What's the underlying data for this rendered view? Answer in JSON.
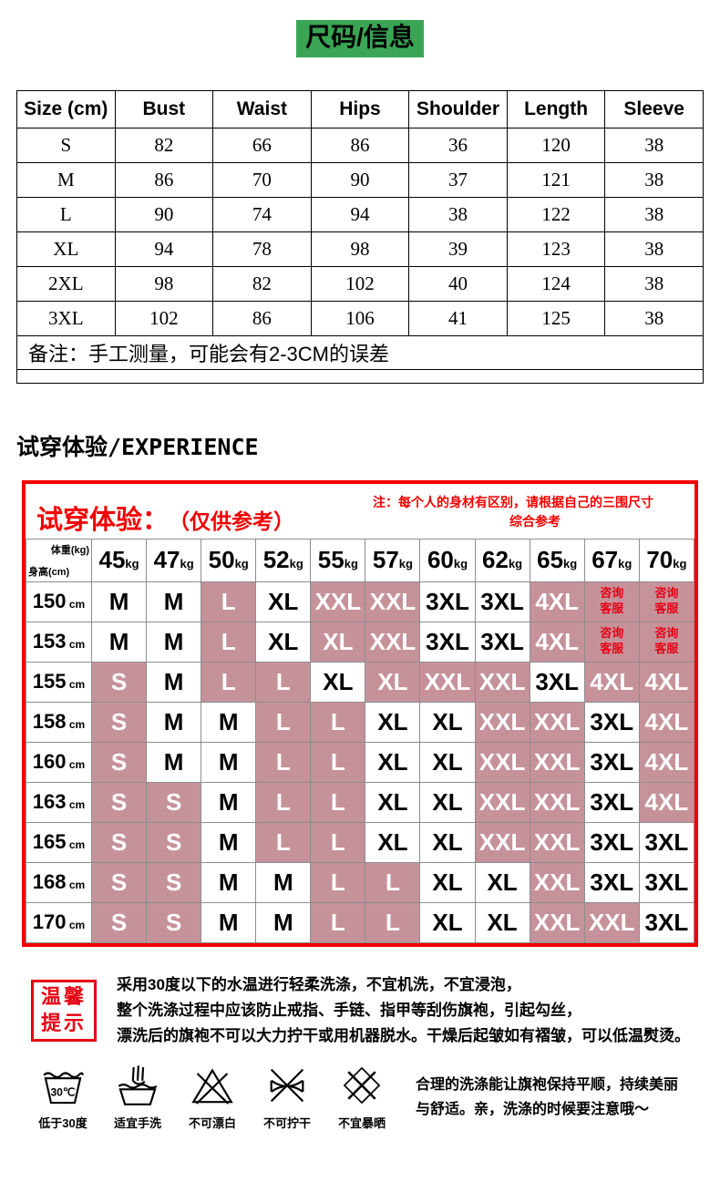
{
  "page": {
    "title": "尺码/信息"
  },
  "colors": {
    "title_highlight": "#3aa655",
    "fit_table_border": "#f20000",
    "highlight_cell": "#c6929a",
    "accent_red": "#e60012"
  },
  "size_table": {
    "headers": [
      "Size (cm)",
      "Bust",
      "Waist",
      "Hips",
      "Shoulder",
      "Length",
      "Sleeve"
    ],
    "rows": [
      [
        "S",
        "82",
        "66",
        "86",
        "36",
        "120",
        "38"
      ],
      [
        "M",
        "86",
        "70",
        "90",
        "37",
        "121",
        "38"
      ],
      [
        "L",
        "90",
        "74",
        "94",
        "38",
        "122",
        "38"
      ],
      [
        "XL",
        "94",
        "78",
        "98",
        "39",
        "123",
        "38"
      ],
      [
        "2XL",
        "98",
        "82",
        "102",
        "40",
        "124",
        "38"
      ],
      [
        "3XL",
        "102",
        "86",
        "106",
        "41",
        "125",
        "38"
      ]
    ],
    "note": "备注：手工测量，可能会有2-3CM的误差"
  },
  "experience": {
    "heading": "试穿体验/EXPERIENCE"
  },
  "fit_table": {
    "title": "试穿体验：",
    "subtitle": "（仅供参考）",
    "note": [
      "注：每个人的身材有区别，请根据自己的三围尺寸",
      "综合参考"
    ],
    "corner": {
      "top": "体重(kg)",
      "bottom": "身高(cm)"
    },
    "weight_headers": [
      {
        "value": "45",
        "unit": "kg"
      },
      {
        "value": "47",
        "unit": "kg"
      },
      {
        "value": "50",
        "unit": "kg"
      },
      {
        "value": "52",
        "unit": "kg"
      },
      {
        "value": "55",
        "unit": "kg"
      },
      {
        "value": "57",
        "unit": "kg"
      },
      {
        "value": "60",
        "unit": "kg"
      },
      {
        "value": "62",
        "unit": "kg"
      },
      {
        "value": "65",
        "unit": "kg"
      },
      {
        "value": "67",
        "unit": "kg"
      },
      {
        "value": "70",
        "unit": "kg"
      }
    ],
    "rows": [
      {
        "height": "150",
        "unit": "cm",
        "cells": [
          {
            "label": "M"
          },
          {
            "label": "M"
          },
          {
            "label": "L",
            "highlight": true
          },
          {
            "label": "XL"
          },
          {
            "label": "XXL",
            "highlight": true
          },
          {
            "label": "XXL",
            "highlight": true
          },
          {
            "label": "3XL"
          },
          {
            "label": "3XL"
          },
          {
            "label": "4XL",
            "highlight": true
          },
          {
            "label": "咨询客服",
            "highlight": true,
            "service": true,
            "lines": [
              "咨询",
              "客服"
            ]
          },
          {
            "label": "咨询客服",
            "highlight": true,
            "service": true,
            "lines": [
              "咨询",
              "客服"
            ]
          }
        ]
      },
      {
        "height": "153",
        "unit": "cm",
        "cells": [
          {
            "label": "M"
          },
          {
            "label": "M"
          },
          {
            "label": "L",
            "highlight": true
          },
          {
            "label": "XL"
          },
          {
            "label": "XL",
            "highlight": true
          },
          {
            "label": "XXL",
            "highlight": true
          },
          {
            "label": "3XL"
          },
          {
            "label": "3XL"
          },
          {
            "label": "4XL",
            "highlight": true
          },
          {
            "label": "咨询客服",
            "highlight": true,
            "service": true,
            "lines": [
              "咨询",
              "客服"
            ]
          },
          {
            "label": "咨询客服",
            "highlight": true,
            "service": true,
            "lines": [
              "咨询",
              "客服"
            ]
          }
        ]
      },
      {
        "height": "155",
        "unit": "cm",
        "cells": [
          {
            "label": "S",
            "highlight": true
          },
          {
            "label": "M"
          },
          {
            "label": "L",
            "highlight": true
          },
          {
            "label": "L",
            "highlight": true
          },
          {
            "label": "XL"
          },
          {
            "label": "XL",
            "highlight": true
          },
          {
            "label": "XXL",
            "highlight": true
          },
          {
            "label": "XXL",
            "highlight": true
          },
          {
            "label": "3XL"
          },
          {
            "label": "4XL",
            "highlight": true
          },
          {
            "label": "4XL",
            "highlight": true
          }
        ]
      },
      {
        "height": "158",
        "unit": "cm",
        "cells": [
          {
            "label": "S",
            "highlight": true
          },
          {
            "label": "M"
          },
          {
            "label": "M"
          },
          {
            "label": "L",
            "highlight": true
          },
          {
            "label": "L",
            "highlight": true
          },
          {
            "label": "XL"
          },
          {
            "label": "XL"
          },
          {
            "label": "XXL",
            "highlight": true
          },
          {
            "label": "XXL",
            "highlight": true
          },
          {
            "label": "3XL"
          },
          {
            "label": "4XL",
            "highlight": true
          }
        ]
      },
      {
        "height": "160",
        "unit": "cm",
        "cells": [
          {
            "label": "S",
            "highlight": true
          },
          {
            "label": "M"
          },
          {
            "label": "M"
          },
          {
            "label": "L",
            "highlight": true
          },
          {
            "label": "L",
            "highlight": true
          },
          {
            "label": "XL"
          },
          {
            "label": "XL"
          },
          {
            "label": "XXL",
            "highlight": true
          },
          {
            "label": "XXL",
            "highlight": true
          },
          {
            "label": "3XL"
          },
          {
            "label": "4XL",
            "highlight": true
          }
        ]
      },
      {
        "height": "163",
        "unit": "cm",
        "cells": [
          {
            "label": "S",
            "highlight": true
          },
          {
            "label": "S",
            "highlight": true
          },
          {
            "label": "M"
          },
          {
            "label": "L",
            "highlight": true
          },
          {
            "label": "L",
            "highlight": true
          },
          {
            "label": "XL"
          },
          {
            "label": "XL"
          },
          {
            "label": "XXL",
            "highlight": true
          },
          {
            "label": "XXL",
            "highlight": true
          },
          {
            "label": "3XL"
          },
          {
            "label": "4XL",
            "highlight": true
          }
        ]
      },
      {
        "height": "165",
        "unit": "cm",
        "cells": [
          {
            "label": "S",
            "highlight": true
          },
          {
            "label": "S",
            "highlight": true
          },
          {
            "label": "M"
          },
          {
            "label": "L",
            "highlight": true
          },
          {
            "label": "L",
            "highlight": true
          },
          {
            "label": "XL"
          },
          {
            "label": "XL"
          },
          {
            "label": "XXL",
            "highlight": true
          },
          {
            "label": "XXL",
            "highlight": true
          },
          {
            "label": "3XL"
          },
          {
            "label": "3XL"
          }
        ]
      },
      {
        "height": "168",
        "unit": "cm",
        "cells": [
          {
            "label": "S",
            "highlight": true
          },
          {
            "label": "S",
            "highlight": true
          },
          {
            "label": "M"
          },
          {
            "label": "M"
          },
          {
            "label": "L",
            "highlight": true
          },
          {
            "label": "L",
            "highlight": true
          },
          {
            "label": "XL"
          },
          {
            "label": "XL"
          },
          {
            "label": "XXL",
            "highlight": true
          },
          {
            "label": "3XL"
          },
          {
            "label": "3XL"
          }
        ]
      },
      {
        "height": "170",
        "unit": "cm",
        "cells": [
          {
            "label": "S",
            "highlight": true
          },
          {
            "label": "S",
            "highlight": true
          },
          {
            "label": "M"
          },
          {
            "label": "M"
          },
          {
            "label": "L",
            "highlight": true
          },
          {
            "label": "L",
            "highlight": true
          },
          {
            "label": "XL"
          },
          {
            "label": "XL"
          },
          {
            "label": "XXL",
            "highlight": true
          },
          {
            "label": "XXL",
            "highlight": true
          },
          {
            "label": "3XL"
          }
        ]
      }
    ]
  },
  "care": {
    "tips_box": [
      "温馨",
      "提示"
    ],
    "lines": [
      "采用30度以下的水温进行轻柔洗涤，不宜机洗，不宜浸泡，",
      "整个洗涤过程中应该防止戒指、手链、指甲等刮伤旗袍，引起勾丝，",
      "漂洗后的旗袍不可以大力拧干或用机器脱水。干燥后起皱如有褶皱，可以低温熨烫。"
    ],
    "wash_icons": [
      {
        "icon": "wash-30-icon",
        "label": "低于30度",
        "temp": "30℃"
      },
      {
        "icon": "hand-wash-icon",
        "label": "适宜手洗"
      },
      {
        "icon": "no-bleach-icon",
        "label": "不可漂白"
      },
      {
        "icon": "no-wring-icon",
        "label": "不可拧干"
      },
      {
        "icon": "no-sun-icon",
        "label": "不宜暴晒"
      }
    ],
    "right_note": [
      "合理的洗涤能让旗袍保持平顺，持续美丽",
      "与舒适。亲，洗涤的时候要注意哦～"
    ]
  }
}
